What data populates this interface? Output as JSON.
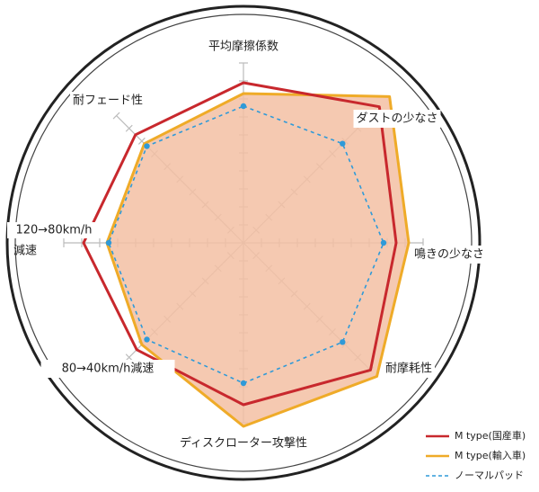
{
  "chart_data": {
    "type": "radar",
    "categories": [
      "平均摩擦係数",
      "ダストの少なさ",
      "鳴きの少なさ",
      "耐摩耗性",
      "ディスクローター攻撃性",
      "80→40km/h減速",
      [
        "120→80km/h",
        "減速"
      ],
      "耐フェード性"
    ],
    "rlim": [
      0,
      12
    ],
    "rticks": [
      1,
      2,
      3,
      4,
      5,
      6,
      7,
      8,
      9,
      10
    ],
    "series": [
      {
        "name": "M type(国産車)",
        "color": "#c8282d",
        "values": [
          8.9,
          10.7,
          8.5,
          10,
          9,
          8.4,
          8.9,
          8.5
        ]
      },
      {
        "name": "M type(輸入車)",
        "color": "#efab28",
        "values": [
          8.3,
          11.5,
          9.2,
          10.5,
          10.2,
          8,
          7.6,
          7.8
        ]
      },
      {
        "name": "ノーマルパッド",
        "color": "#2f9ad8",
        "values": [
          7.6,
          7.8,
          7.8,
          7.8,
          7.8,
          7.6,
          7.5,
          7.6
        ]
      }
    ]
  }
}
